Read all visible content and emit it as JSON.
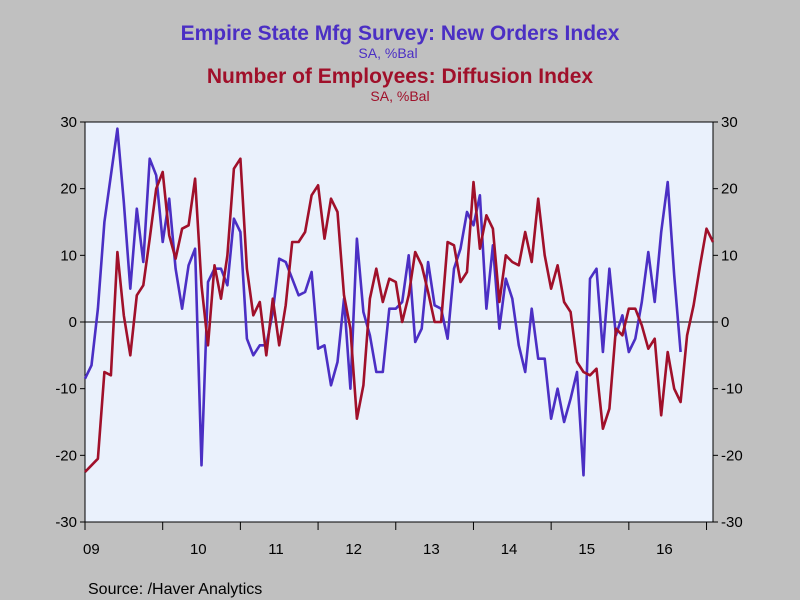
{
  "titles": {
    "series1_title": "Empire State Mfg Survey: New Orders Index",
    "series1_unit": "SA, %Bal",
    "series2_title": "Number of Employees: Diffusion Index",
    "series2_unit": "SA, %Bal"
  },
  "source": "Source:  /Haver Analytics",
  "colors": {
    "background": "#c0c0c0",
    "plot_bg": "#eaf1fc",
    "series1": "#4b2fc4",
    "series2": "#a0102a"
  },
  "chart_data": {
    "type": "line",
    "x_start": "2009-01",
    "frequency": "monthly",
    "x_tick_labels": [
      "09",
      "10",
      "11",
      "12",
      "13",
      "14",
      "15",
      "16"
    ],
    "ylim": [
      -30,
      30
    ],
    "y_ticks": [
      -30,
      -20,
      -10,
      0,
      10,
      20,
      30
    ],
    "grid": false,
    "zero_line": true,
    "legend": "titles at top",
    "series": [
      {
        "name": "Empire State Mfg Survey: New Orders Index",
        "color": "#4b2fc4",
        "values": [
          -8.5,
          -6.5,
          2,
          15,
          22,
          29,
          18,
          5,
          17,
          9,
          24.5,
          22,
          12,
          18.5,
          8,
          2,
          8.5,
          11,
          -21.5,
          6,
          8,
          8,
          5.5,
          15.5,
          13.5,
          -2.5,
          -5,
          -3.5,
          -3.5,
          1.5,
          9.5,
          9,
          6.5,
          4,
          4.5,
          7.5,
          -4,
          -3.5,
          -9.5,
          -6,
          3.5,
          -10,
          12.5,
          1.5,
          -2,
          -7.5,
          -7.5,
          2,
          2,
          3,
          10,
          -3,
          -1,
          9,
          2.5,
          2,
          -2.5,
          8,
          11,
          16.5,
          14.5,
          19,
          2,
          11.5,
          -1,
          6.5,
          3.5,
          -3.5,
          -7.5,
          2,
          -5.5,
          -5.5,
          -14.5,
          -10,
          -15,
          -11.5,
          -7.5,
          -23,
          6.5,
          8,
          -4.5,
          8,
          -2,
          1,
          -4.5,
          -2.5,
          3,
          10.5,
          3,
          13.5,
          21,
          7,
          -4.5
        ]
      },
      {
        "name": "Number of Employees: Diffusion Index",
        "color": "#a0102a",
        "values": [
          -22.5,
          -21.5,
          -20.5,
          -7.5,
          -8,
          10.5,
          1,
          -5,
          4,
          5.5,
          12.5,
          20,
          22.5,
          13,
          9.5,
          14,
          14.5,
          21.5,
          5.5,
          -3.5,
          8.5,
          3.5,
          10,
          23,
          24.5,
          8,
          1,
          3,
          -5,
          3.5,
          -3.5,
          2.5,
          12,
          12,
          13.5,
          19,
          20.5,
          12.5,
          18.5,
          16.5,
          4,
          -1,
          -14.5,
          -9.5,
          3.5,
          8,
          3,
          6.5,
          6,
          0,
          4,
          10.5,
          8.5,
          4.5,
          0,
          0,
          12,
          11.5,
          6,
          7.5,
          21,
          11,
          16,
          14,
          3,
          10,
          9,
          8.5,
          13.5,
          9,
          18.5,
          10,
          5,
          8.5,
          3,
          1.5,
          -6,
          -7.5,
          -8,
          -7,
          -16,
          -13,
          -1,
          -2,
          2,
          2,
          -0.5,
          -4,
          -2.5,
          -14,
          -4.5,
          -10,
          -12,
          -2,
          2.5,
          8.5,
          14,
          12
        ]
      }
    ]
  }
}
